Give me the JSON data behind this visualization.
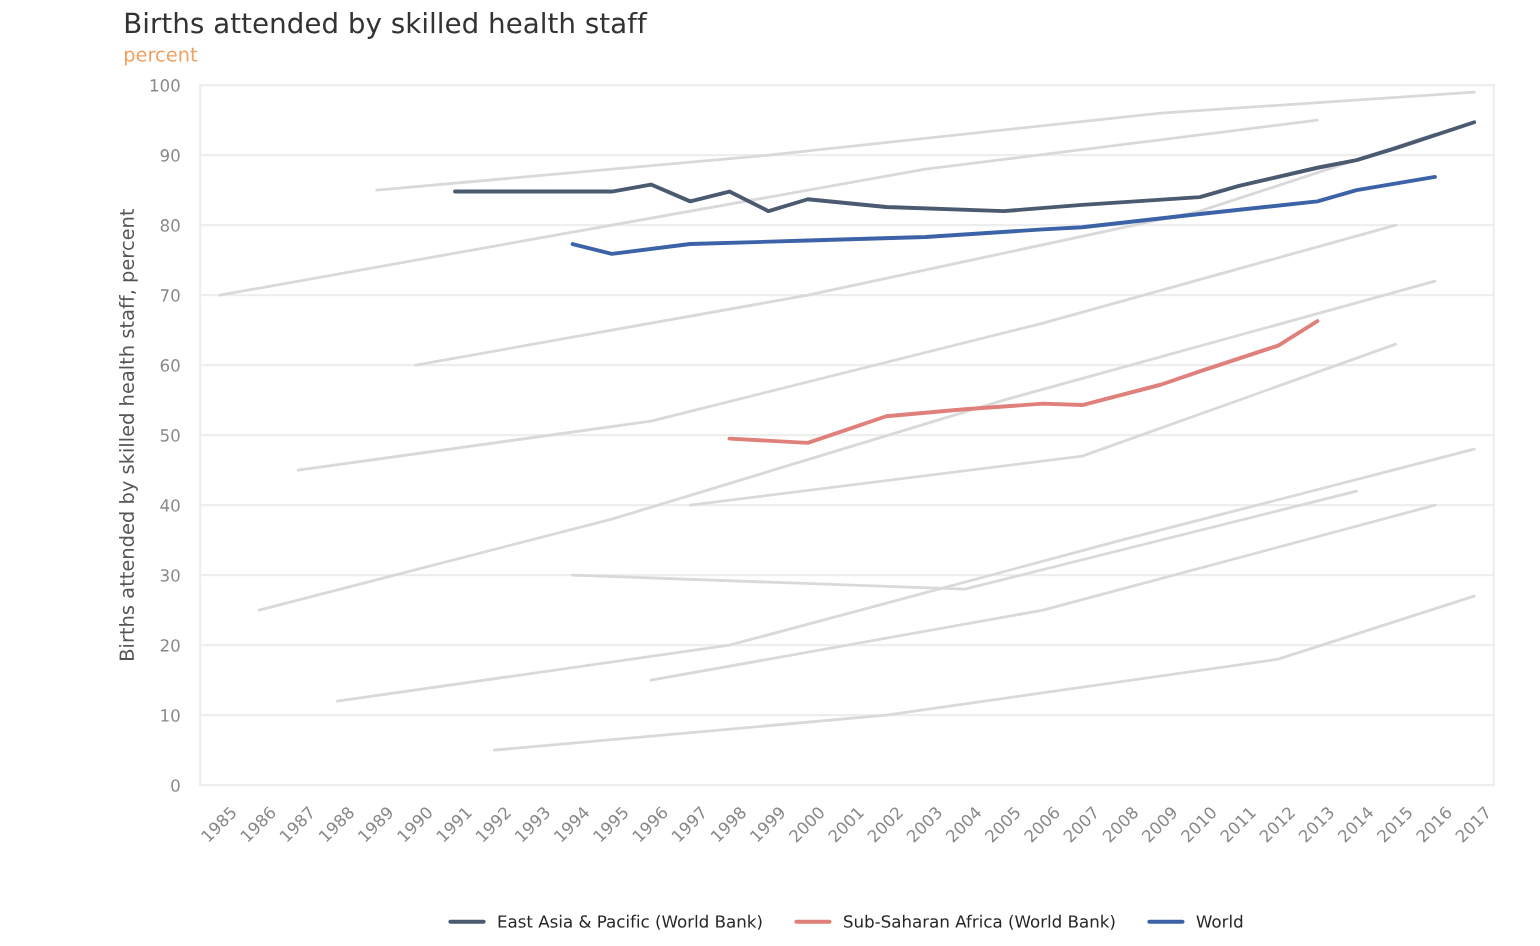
{
  "chart_data": {
    "type": "line",
    "title": "Births attended by skilled health staff",
    "subtitle": "percent",
    "ylabel": "Births attended by skilled health staff, percent",
    "xlim": [
      1984.5,
      2017.5
    ],
    "xticks": [
      1985,
      1986,
      1987,
      1988,
      1989,
      1990,
      1991,
      1992,
      1993,
      1994,
      1995,
      1996,
      1997,
      1998,
      1999,
      2000,
      2001,
      2002,
      2003,
      2004,
      2005,
      2006,
      2007,
      2008,
      2009,
      2010,
      2011,
      2012,
      2013,
      2014,
      2015,
      2016,
      2017
    ],
    "ylim": [
      0,
      100
    ],
    "yticks": [
      0,
      10,
      20,
      30,
      40,
      50,
      60,
      70,
      80,
      90,
      100
    ],
    "grid": "y",
    "legend": "bottom",
    "marker": "none",
    "line_style": "solid",
    "series": [
      {
        "color": "#d9d9d9",
        "x": [
          1986,
          1995,
          2005,
          2016
        ],
        "values": [
          25,
          38,
          55,
          72
        ]
      },
      {
        "color": "#d9d9d9",
        "x": [
          1988,
          1998,
          2008,
          2017
        ],
        "values": [
          12,
          20,
          35,
          48
        ]
      },
      {
        "color": "#d9d9d9",
        "x": [
          1990,
          2000,
          2010,
          2016
        ],
        "values": [
          60,
          70,
          82,
          93
        ]
      },
      {
        "color": "#d9d9d9",
        "x": [
          1992,
          2002,
          2012,
          2017
        ],
        "values": [
          5,
          10,
          18,
          27
        ]
      },
      {
        "color": "#d9d9d9",
        "x": [
          1987,
          1996,
          2006,
          2015
        ],
        "values": [
          45,
          52,
          66,
          80
        ]
      },
      {
        "color": "#d9d9d9",
        "x": [
          1994,
          2004,
          2014
        ],
        "values": [
          30,
          28,
          42
        ]
      },
      {
        "color": "#d9d9d9",
        "x": [
          1989,
          1999,
          2009,
          2017
        ],
        "values": [
          85,
          90,
          96,
          99
        ]
      },
      {
        "color": "#d9d9d9",
        "x": [
          1996,
          2006,
          2016
        ],
        "values": [
          15,
          25,
          40
        ]
      },
      {
        "color": "#d9d9d9",
        "x": [
          1985,
          1993,
          2003,
          2013
        ],
        "values": [
          70,
          78,
          88,
          95
        ]
      },
      {
        "color": "#d9d9d9",
        "x": [
          1997,
          2007,
          2015
        ],
        "values": [
          40,
          47,
          63
        ]
      },
      {
        "name": "East Asia & Pacific (World Bank)",
        "color": "#4a5a70",
        "x": [
          1991,
          1995,
          1996,
          1997,
          1998,
          1999,
          2000,
          2002,
          2005,
          2007,
          2010,
          2011,
          2013,
          2014,
          2015,
          2017
        ],
        "values": [
          84.8,
          84.8,
          85.8,
          83.4,
          84.8,
          82,
          83.7,
          82.6,
          82,
          82.9,
          84,
          85.6,
          88.2,
          89.3,
          91,
          94.7
        ]
      },
      {
        "name": "Sub-Saharan Africa (World Bank)",
        "color": "#e0807a",
        "x": [
          1998,
          2000,
          2001,
          2002,
          2004,
          2006,
          2007,
          2009,
          2010,
          2012,
          2013
        ],
        "values": [
          49.5,
          48.9,
          50.8,
          52.7,
          53.7,
          54.5,
          54.3,
          57.2,
          59.1,
          62.8,
          66.3
        ]
      },
      {
        "name": "World",
        "color": "#3c63a8",
        "x": [
          1994,
          1995,
          1997,
          2000,
          2003,
          2006,
          2007,
          2010,
          2013,
          2014,
          2016
        ],
        "values": [
          77.3,
          75.9,
          77.3,
          77.8,
          78.3,
          79.4,
          79.7,
          81.6,
          83.4,
          85,
          86.9
        ]
      }
    ]
  }
}
